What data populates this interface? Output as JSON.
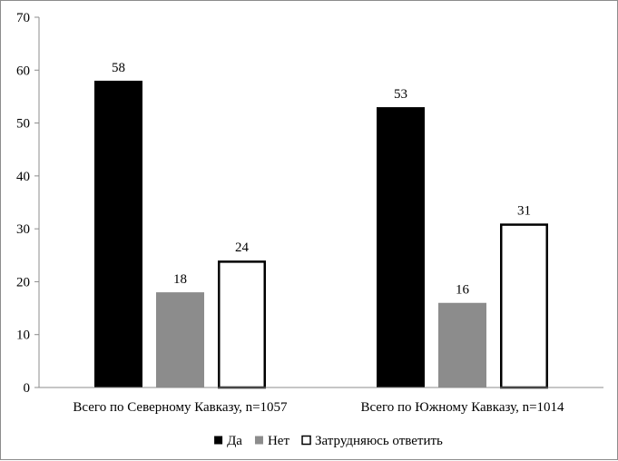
{
  "chart_data": {
    "type": "bar",
    "categories": [
      "Всего по Северному Кавказу, n=1057",
      "Всего по Южному Кавказу, n=1014"
    ],
    "series": [
      {
        "name": "Да",
        "values": [
          58,
          53
        ],
        "color": "#000000",
        "fill": "#000000",
        "stroke": "#000000"
      },
      {
        "name": "Нет",
        "values": [
          18,
          16
        ],
        "color": "#8c8c8c",
        "fill": "#8c8c8c",
        "stroke": "#8c8c8c"
      },
      {
        "name": "Затрудняюсь ответить",
        "values": [
          24,
          31
        ],
        "color": "#ffffff",
        "fill": "#ffffff",
        "stroke": "#000000"
      }
    ],
    "yticks": [
      0,
      10,
      20,
      30,
      40,
      50,
      60,
      70
    ],
    "ylim": [
      0,
      70
    ],
    "grid": false,
    "legend": "bottom-center",
    "title": "",
    "xlabel": "",
    "ylabel": ""
  }
}
